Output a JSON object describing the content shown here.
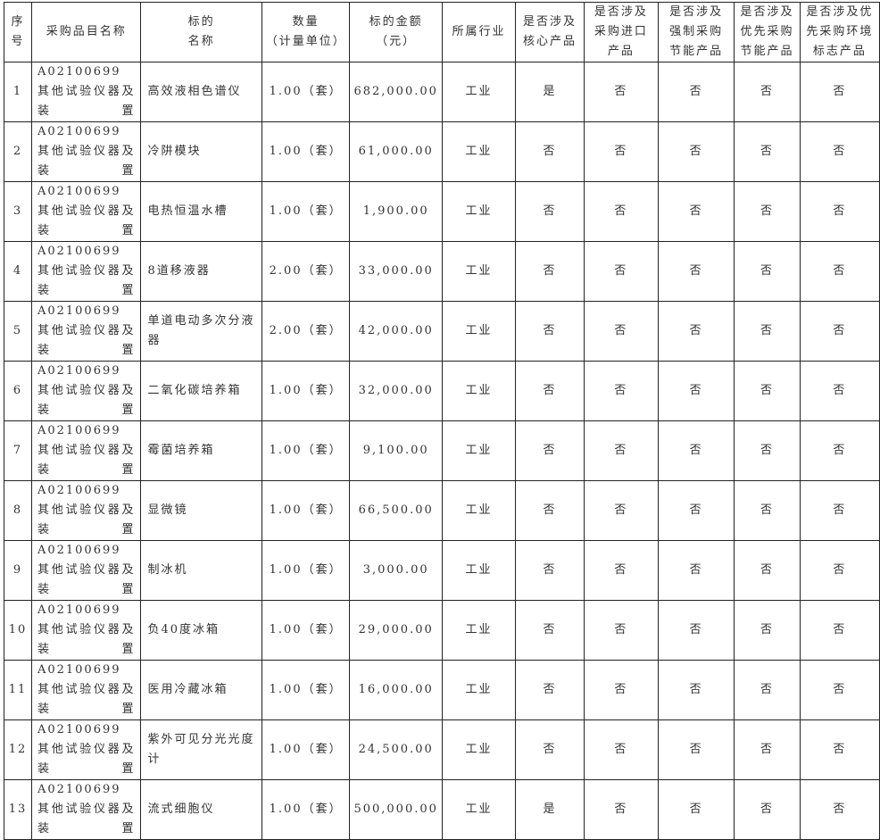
{
  "headers": [
    "序号",
    "采购品目名称",
    "标的名称",
    "数量（计量单位）",
    "标的金额（元）",
    "所属行业",
    "是否涉及核心产品",
    "是否涉及采购进口产品",
    "是否涉及强制采购节能产品",
    "是否涉及优先采购节能产品",
    "是否涉及优先采购环境标志产品"
  ],
  "header_lines": [
    [
      "序",
      "号"
    ],
    [
      "采购品目名称"
    ],
    [
      "标的",
      "名称"
    ],
    [
      "数量",
      "（计量单位）"
    ],
    [
      "标的金额",
      "（元）"
    ],
    [
      "所属行业"
    ],
    [
      "是否涉及",
      "核心产品"
    ],
    [
      "是否涉及",
      "采购进口",
      "产品"
    ],
    [
      "是否涉及",
      "强制采购",
      "节能产品"
    ],
    [
      "是否涉及",
      "优先采购",
      "节能产品"
    ],
    [
      "是否涉及优",
      "先采购环境",
      "标志产品"
    ]
  ],
  "rows": [
    {
      "no": "1",
      "category": "A02100699 其他试验仪器及装置",
      "name": "高效液相色谱仪",
      "qty": "1.00（套）",
      "amount": "682,000.00",
      "industry": "工业",
      "core": "是",
      "import": "否",
      "energy_mandatory": "否",
      "energy_priority": "否",
      "env_label": "否"
    },
    {
      "no": "2",
      "category": "A02100699 其他试验仪器及装置",
      "name": "冷阱模块",
      "qty": "1.00（套）",
      "amount": "61,000.00",
      "industry": "工业",
      "core": "否",
      "import": "否",
      "energy_mandatory": "否",
      "energy_priority": "否",
      "env_label": "否"
    },
    {
      "no": "3",
      "category": "A02100699 其他试验仪器及装置",
      "name": "电热恒温水槽",
      "qty": "1.00（套）",
      "amount": "1,900.00",
      "industry": "工业",
      "core": "否",
      "import": "否",
      "energy_mandatory": "否",
      "energy_priority": "否",
      "env_label": "否"
    },
    {
      "no": "4",
      "category": "A02100699 其他试验仪器及装置",
      "name": "8道移液器",
      "qty": "2.00（套）",
      "amount": "33,000.00",
      "industry": "工业",
      "core": "否",
      "import": "否",
      "energy_mandatory": "否",
      "energy_priority": "否",
      "env_label": "否"
    },
    {
      "no": "5",
      "category": "A02100699 其他试验仪器及装置",
      "name": "单道电动多次分液器",
      "qty": "2.00（套）",
      "amount": "42,000.00",
      "industry": "工业",
      "core": "否",
      "import": "否",
      "energy_mandatory": "否",
      "energy_priority": "否",
      "env_label": "否"
    },
    {
      "no": "6",
      "category": "A02100699 其他试验仪器及装置",
      "name": "二氧化碳培养箱",
      "qty": "1.00（套）",
      "amount": "32,000.00",
      "industry": "工业",
      "core": "否",
      "import": "否",
      "energy_mandatory": "否",
      "energy_priority": "否",
      "env_label": "否"
    },
    {
      "no": "7",
      "category": "A02100699 其他试验仪器及装置",
      "name": "霉菌培养箱",
      "qty": "1.00（套）",
      "amount": "9,100.00",
      "industry": "工业",
      "core": "否",
      "import": "否",
      "energy_mandatory": "否",
      "energy_priority": "否",
      "env_label": "否"
    },
    {
      "no": "8",
      "category": "A02100699 其他试验仪器及装置",
      "name": "显微镜",
      "qty": "1.00（套）",
      "amount": "66,500.00",
      "industry": "工业",
      "core": "否",
      "import": "否",
      "energy_mandatory": "否",
      "energy_priority": "否",
      "env_label": "否"
    },
    {
      "no": "9",
      "category": "A02100699 其他试验仪器及装置",
      "name": "制冰机",
      "qty": "1.00（套）",
      "amount": "3,000.00",
      "industry": "工业",
      "core": "否",
      "import": "否",
      "energy_mandatory": "否",
      "energy_priority": "否",
      "env_label": "否"
    },
    {
      "no": "10",
      "category": "A02100699 其他试验仪器及装置",
      "name": "负40度冰箱",
      "qty": "1.00（套）",
      "amount": "29,000.00",
      "industry": "工业",
      "core": "否",
      "import": "否",
      "energy_mandatory": "否",
      "energy_priority": "否",
      "env_label": "否"
    },
    {
      "no": "11",
      "category": "A02100699 其他试验仪器及装置",
      "name": "医用冷藏冰箱",
      "qty": "1.00（套）",
      "amount": "16,000.00",
      "industry": "工业",
      "core": "否",
      "import": "否",
      "energy_mandatory": "否",
      "energy_priority": "否",
      "env_label": "否"
    },
    {
      "no": "12",
      "category": "A02100699 其他试验仪器及装置",
      "name": "紫外可见分光光度计",
      "qty": "1.00（套）",
      "amount": "24,500.00",
      "industry": "工业",
      "core": "否",
      "import": "否",
      "energy_mandatory": "否",
      "energy_priority": "否",
      "env_label": "否"
    },
    {
      "no": "13",
      "category": "A02100699 其他试验仪器及装置",
      "name": "流式细胞仪",
      "qty": "1.00（套）",
      "amount": "500,000.00",
      "industry": "工业",
      "core": "是",
      "import": "否",
      "energy_mandatory": "否",
      "energy_priority": "否",
      "env_label": "否"
    }
  ]
}
